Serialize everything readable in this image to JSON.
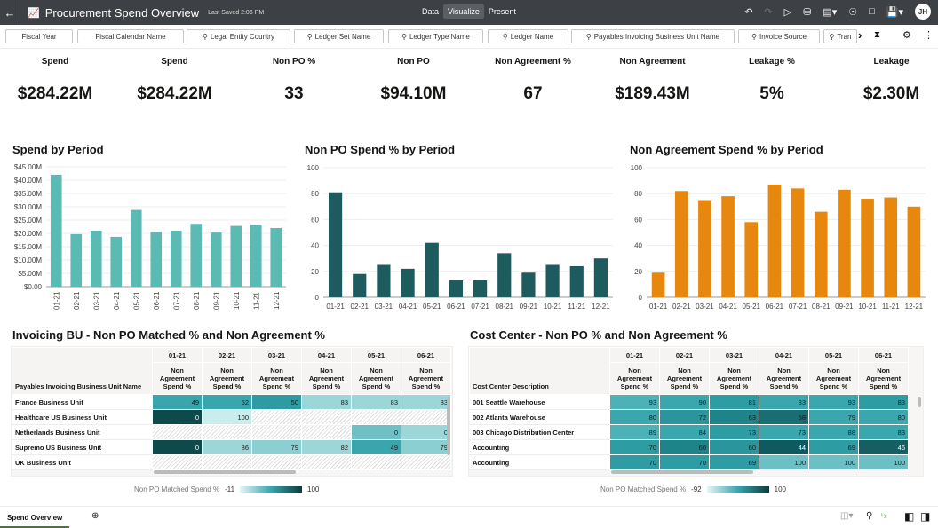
{
  "header": {
    "title": "Procurement Spend Overview",
    "saved": "Last Saved 2:06 PM",
    "modes": [
      "Data",
      "Visualize",
      "Present"
    ],
    "active_mode": "Visualize",
    "avatar": "JH"
  },
  "filters": [
    "Fiscal Year",
    "Fiscal Calendar Name",
    "Legal Entity Country",
    "Ledger Set Name",
    "Ledger Type Name",
    "Ledger Name",
    "Payables Invoicing Business Unit Name",
    "Invoice Source",
    "Tran"
  ],
  "kpis": [
    {
      "label": "Spend",
      "value": "$284.22M"
    },
    {
      "label": "Spend",
      "value": "$284.22M"
    },
    {
      "label": "Non PO %",
      "value": "33"
    },
    {
      "label": "Non PO",
      "value": "$94.10M"
    },
    {
      "label": "Non Agreement %",
      "value": "67"
    },
    {
      "label": "Non Agreement",
      "value": "$189.43M"
    },
    {
      "label": "Leakage %",
      "value": "5%"
    },
    {
      "label": "Leakage",
      "value": "$2.30M"
    }
  ],
  "chart_data": [
    {
      "type": "bar",
      "title": "Spend by Period",
      "categories": [
        "01-21",
        "02-21",
        "03-21",
        "04-21",
        "05-21",
        "06-21",
        "07-21",
        "08-21",
        "09-21",
        "10-21",
        "11-21",
        "12-21"
      ],
      "values": [
        42,
        19.7,
        21,
        18.7,
        28.8,
        20.5,
        21,
        23.6,
        20.3,
        22.8,
        23.3,
        22
      ],
      "unit": "$M",
      "ylim": [
        0,
        45
      ],
      "yticks": [
        "$0.00",
        "$5.00M",
        "$10.00M",
        "$15.00M",
        "$20.00M",
        "$25.00M",
        "$30.00M",
        "$35.00M",
        "$40.00M",
        "$45.00M"
      ],
      "color": "#5bbab3",
      "grid": true
    },
    {
      "type": "bar",
      "title": "Non PO Spend % by Period",
      "categories": [
        "01-21",
        "02-21",
        "03-21",
        "04-21",
        "05-21",
        "06-21",
        "07-21",
        "08-21",
        "09-21",
        "10-21",
        "11-21",
        "12-21"
      ],
      "values": [
        81,
        18,
        25,
        22,
        42,
        13,
        13,
        34,
        19,
        25,
        24,
        30
      ],
      "ylim": [
        0,
        100
      ],
      "yticks": [
        "0",
        "20",
        "40",
        "60",
        "80",
        "100"
      ],
      "color": "#1e5b5e",
      "grid": true
    },
    {
      "type": "bar",
      "title": "Non Agreement Spend % by Period",
      "categories": [
        "01-21",
        "02-21",
        "03-21",
        "04-21",
        "05-21",
        "06-21",
        "07-21",
        "08-21",
        "09-21",
        "10-21",
        "11-21",
        "12-21"
      ],
      "values": [
        19,
        82,
        75,
        78,
        58,
        87,
        84,
        66,
        83,
        76,
        77,
        70
      ],
      "ylim": [
        0,
        100
      ],
      "yticks": [
        "0",
        "20",
        "40",
        "60",
        "80",
        "100"
      ],
      "color": "#e8870e",
      "grid": true
    }
  ],
  "tables": [
    {
      "title": "Invoicing BU - Non PO Matched % and Non Agreement %",
      "row_header": "Payables Invoicing Business Unit Name",
      "periods": [
        "01-21",
        "02-21",
        "03-21",
        "04-21",
        "05-21",
        "06-21"
      ],
      "measure": "Non Agreement Spend %",
      "rows": [
        {
          "name": "France Business Unit",
          "cells": [
            [
              "49",
              "#3aa5ad"
            ],
            [
              "52",
              "#3aa5ad"
            ],
            [
              "50",
              "#2e9ba3"
            ],
            [
              "83",
              "#9dd6d9"
            ],
            [
              "83",
              "#9dd6d9"
            ],
            [
              "83",
              "#9dd6d9"
            ]
          ]
        },
        {
          "name": "Healthcare US Business Unit",
          "cells": [
            [
              "0",
              "#0e4a4c"
            ],
            [
              "100",
              "#c9ecec"
            ],
            null,
            null,
            null,
            null
          ]
        },
        {
          "name": "Netherlands Business Unit",
          "cells": [
            null,
            null,
            null,
            null,
            [
              "0",
              "#6fc0c5"
            ],
            [
              "0",
              "#9dd6d9"
            ]
          ]
        },
        {
          "name": "Supremo US Business Unit",
          "cells": [
            [
              "0",
              "#0e4a4c"
            ],
            [
              "86",
              "#9dd6d9"
            ],
            [
              "79",
              "#8ccfd2"
            ],
            [
              "82",
              "#9dd6d9"
            ],
            [
              "49",
              "#3aa5ad"
            ],
            [
              "79",
              "#8ccfd2"
            ]
          ]
        },
        {
          "name": "UK Business Unit",
          "cells": [
            null,
            null,
            null,
            null,
            null,
            null
          ]
        }
      ],
      "legend": {
        "label": "Non PO Matched Spend %",
        "min": "-11",
        "max": "100"
      }
    },
    {
      "title": "Cost Center - Non PO % and Non Agreement %",
      "row_header": "Cost Center Description",
      "periods": [
        "01-21",
        "02-21",
        "03-21",
        "04-21",
        "05-21",
        "06-21"
      ],
      "measure": "Non Agreement Spend %",
      "rows": [
        {
          "name": "001 Seattle Warehouse",
          "cells": [
            [
              "93",
              "#4cb2b8"
            ],
            [
              "90",
              "#3aa7ae"
            ],
            [
              "81",
              "#2e9ca3"
            ],
            [
              "83",
              "#3aa7ae"
            ],
            [
              "93",
              "#3aa7ae"
            ],
            [
              "83",
              "#2e9ca3"
            ]
          ]
        },
        {
          "name": "002 Atlanta Warehouse",
          "cells": [
            [
              "80",
              "#3aa7ae"
            ],
            [
              "72",
              "#2a959c"
            ],
            [
              "63",
              "#1f8489"
            ],
            [
              "58",
              "#186e73"
            ],
            [
              "79",
              "#3aa7ae"
            ],
            [
              "80",
              "#3aa7ae"
            ]
          ]
        },
        {
          "name": "003 Chicago Distribution Center",
          "cells": [
            [
              "89",
              "#4cb2b8"
            ],
            [
              "84",
              "#3aa7ae"
            ],
            [
              "73",
              "#2e9ca3"
            ],
            [
              "73",
              "#3aa7ae"
            ],
            [
              "88",
              "#3aa7ae"
            ],
            [
              "83",
              "#3aa7ae"
            ]
          ]
        },
        {
          "name": "Accounting",
          "cells": [
            [
              "70",
              "#2e9ca3"
            ],
            [
              "60",
              "#1f8489"
            ],
            [
              "60",
              "#2a959c"
            ],
            [
              "44",
              "#0f5a5e"
            ],
            [
              "69",
              "#2e9ca3"
            ],
            [
              "46",
              "#155f63"
            ]
          ]
        },
        {
          "name": "Accounting",
          "cells": [
            [
              "70",
              "#2e9ca3"
            ],
            [
              "70",
              "#2e9ca3"
            ],
            [
              "69",
              "#2e9ca3"
            ],
            [
              "100",
              "#6cc0c5"
            ],
            [
              "100",
              "#6cc0c5"
            ],
            [
              "100",
              "#6cc0c5"
            ]
          ]
        }
      ],
      "legend": {
        "label": "Non PO Matched Spend %",
        "min": "-92",
        "max": "100"
      }
    }
  ],
  "footer": {
    "tab": "Spend Overview"
  }
}
